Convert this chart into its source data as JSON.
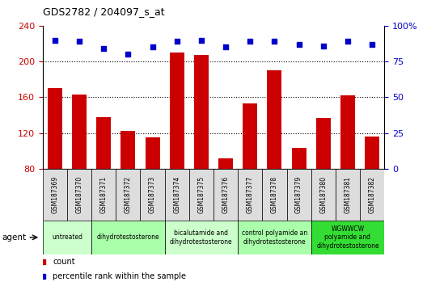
{
  "title": "GDS2782 / 204097_s_at",
  "samples": [
    "GSM187369",
    "GSM187370",
    "GSM187371",
    "GSM187372",
    "GSM187373",
    "GSM187374",
    "GSM187375",
    "GSM187376",
    "GSM187377",
    "GSM187378",
    "GSM187379",
    "GSM187380",
    "GSM187381",
    "GSM187382"
  ],
  "counts": [
    170,
    163,
    138,
    122,
    115,
    210,
    207,
    92,
    153,
    190,
    103,
    137,
    162,
    116
  ],
  "percentiles": [
    90,
    89,
    84,
    80,
    85,
    89,
    90,
    85,
    89,
    89,
    87,
    86,
    89,
    87
  ],
  "ylim_left": [
    80,
    240
  ],
  "ylim_right": [
    0,
    100
  ],
  "yticks_left": [
    80,
    120,
    160,
    200,
    240
  ],
  "ytick_labels_left": [
    "80",
    "120",
    "160",
    "200",
    "240"
  ],
  "yticks_right": [
    0,
    25,
    50,
    75,
    100
  ],
  "ytick_labels_right": [
    "0",
    "25",
    "50",
    "75",
    "100%"
  ],
  "bar_color": "#cc0000",
  "dot_color": "#0000cc",
  "agent_groups": [
    {
      "label": "untreated",
      "start": 0,
      "end": 1,
      "color": "#ccffcc"
    },
    {
      "label": "dihydrotestosterone",
      "start": 2,
      "end": 4,
      "color": "#aaffaa"
    },
    {
      "label": "bicalutamide and\ndihydrotestosterone",
      "start": 5,
      "end": 7,
      "color": "#ccffcc"
    },
    {
      "label": "control polyamide an\ndihydrotestosterone",
      "start": 8,
      "end": 10,
      "color": "#aaffaa"
    },
    {
      "label": "WGWWCW\npolyamide and\ndihydrotestosterone",
      "start": 11,
      "end": 13,
      "color": "#33dd33"
    }
  ],
  "sample_bg_color": "#dddddd",
  "legend_count_color": "#cc0000",
  "legend_pct_color": "#0000cc"
}
